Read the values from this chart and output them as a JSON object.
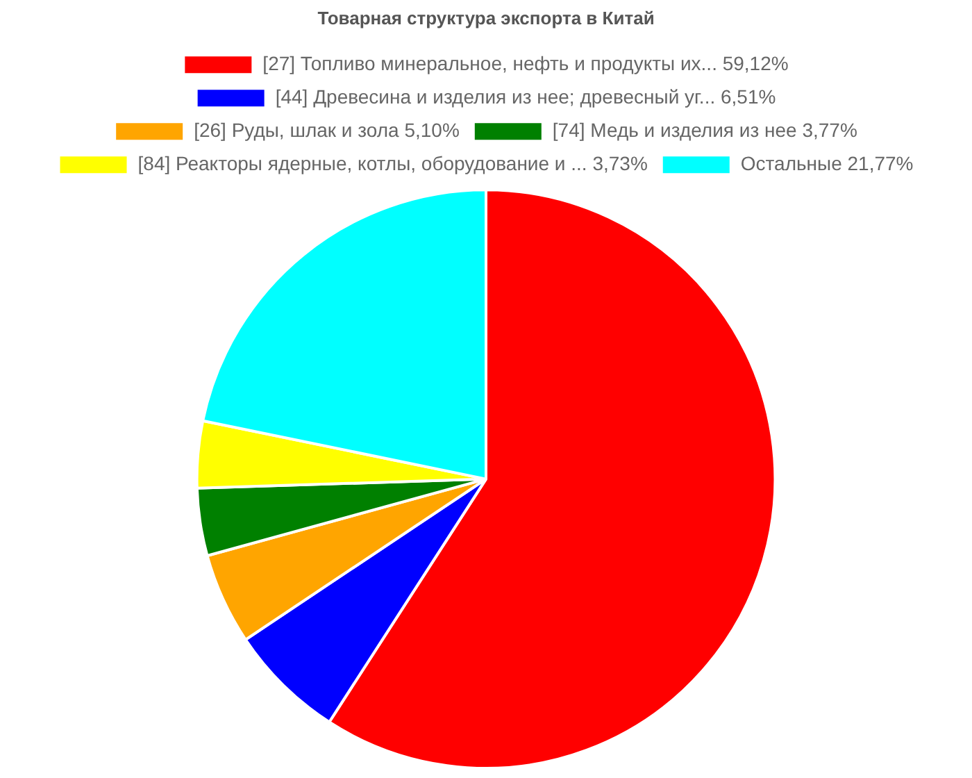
{
  "chart_data": {
    "type": "pie",
    "title": "Товарная структура экспорта в Китай",
    "categories": [
      "[27] Топливо минеральное, нефть и продукты их...",
      "[44] Древесина и изделия из нее; древесный уг...",
      "[26] Руды, шлак и зола",
      "[74] Медь и изделия из нее",
      "[84] Реакторы ядерные, котлы, оборудование и ...",
      "Остальные"
    ],
    "values": [
      59.12,
      6.51,
      5.1,
      3.77,
      3.73,
      21.77
    ],
    "colors": [
      "#ff0000",
      "#0000ff",
      "#ffa500",
      "#008000",
      "#ffff00",
      "#00ffff"
    ],
    "value_labels": [
      "59,12%",
      "6,51%",
      "5,10%",
      "3,77%",
      "3,73%",
      "21,77%"
    ],
    "legend": "top"
  }
}
